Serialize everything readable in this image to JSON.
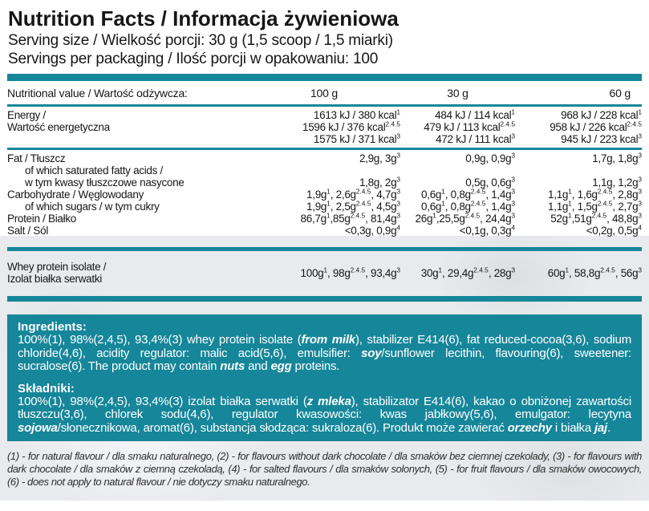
{
  "theme": {
    "teal": "#16869A",
    "text_color": "#161616",
    "ingredients_text_color": "#FFFFFF",
    "watermark_gray": "#E9EAED"
  },
  "header": {
    "title": "Nutrition Facts / Informacja żywieniowa",
    "serving_size": "Serving size / Wielkość porcji: 30 g (1,5 scoop / 1,5 miarki)",
    "servings_per_packaging": "Servings per packaging / Ilość porcji w opakowaniu: 100"
  },
  "table": {
    "header": {
      "label": "Nutritional value / Wartość odżywcza:",
      "col_100": "100 g",
      "col_30": "30 g",
      "col_60": "60 g"
    },
    "rows": [
      {
        "id": "energy",
        "label": "Energy /\nWartość energetyczna",
        "v100": "1613 kJ / 380 kcal^{1}\n1596 kJ / 376 kcal^{2.4.5}\n1575 kJ / 371 kcal^{3}",
        "v30": "484 kJ / 114 kcal^{1}\n479 kJ / 113 kcal^{2.4.5}\n472 kJ / 111 kcal^{3}",
        "v60": "968 kJ / 228 kcal^{1}\n958 kJ / 226 kcal^{2.4.5}\n945 kJ / 223 kcal^{3}"
      },
      {
        "id": "fat",
        "label": "Fat / Tłuszcz",
        "v100": "2,9g, 3g^{3}",
        "v30": "0,9g, 0,9g^{3}",
        "v60": "1,7g, 1,8g^{3}"
      },
      {
        "id": "saturated-fat",
        "label": "of which saturated fatty acids /\nw tym kwasy tłuszczowe nasycone",
        "v100": "1,8g, 2g^{3}",
        "v30": "0,5g, 0,6g^{3}",
        "v60": "1,1g, 1,2g^{3}"
      },
      {
        "id": "carbohydrate",
        "label": "Carbohydrate / Węglowodany",
        "v100": "1,9g^{1}, 2,6g^{2.4.5}, 4,7g^{3}",
        "v30": "0,6g^{1}, 0,8g^{2.4.5}, 1,4g^{3}",
        "v60": "1,1g^{1}, 1,6g^{2.4.5}, 2,8g^{3}"
      },
      {
        "id": "sugars",
        "label": "of which sugars / w tym cukry",
        "v100": "1,9g^{1}, 2,5g^{2.4.5}, 4,5g^{3}",
        "v30": "0,6g^{1}, 0,8g^{2.4.5}, 1,4g^{3}",
        "v60": "1,1g^{1}, 1,5g^{2.4.5}, 2,7g^{3}"
      },
      {
        "id": "protein",
        "label": "Protein / Białko",
        "v100": "86,7g^{1},85g^{2.4.5}, 81,4g^{3}",
        "v30": "26g^{1},25,5g^{2.4.5}, 24,4g^{3}",
        "v60": "52g^{1},51g^{2.4.5}, 48,8g^{3}"
      },
      {
        "id": "salt",
        "label": "Salt / Sól",
        "v100": "<0,3g, 0,9g^{4}",
        "v30": "<0,1g, 0,3g^{4}",
        "v60": "<0,2g, 0,5g^{4}"
      },
      {
        "id": "whey-protein-isolate",
        "label": "Whey protein isolate /\nIzolat białka serwatki",
        "v100": "100g^{1}, 98g^{2.4.5}, 93,4g^{3}",
        "v30": "30g^{1}, 29,4g^{2.4.5}, 28g^{3}",
        "v60": "60g^{1}, 58,8g^{2.4.5}, 56g^{3}"
      }
    ]
  },
  "ingredients_en": {
    "heading": "Ingredients:",
    "body": "100%(1), 98%(2,4,5), 93,4%(3) whey protein isolate (*from milk*), stabilizer E414(6), fat reduced-cocoa(3,6), sodium chloride(4,6), acidity regulator: malic acid(5,6), emulsifier: *soy*/sunflower lecithin, flavouring(6), sweetener: sucralose(6). The product may contain *nuts* and *egg* proteins."
  },
  "ingredients_pl": {
    "heading": "Składniki:",
    "body": "100%(1), 98%(2,4,5), 93,4%(3) izolat białka serwatki (*z mleka*), stabilizator E414(6), kakao o obniżonej zawartości tłuszczu(3,6), chlorek sodu(4,6), regulator kwasowości: kwas jabłkowy(5,6), emulgator: lecytyna *sojowa*/słonecznikowa, aromat(6), substancja słodząca: sukraloza(6). Produkt może zawierać *orzechy* i białka *jaj*."
  },
  "footnote": {
    "text": "(1) - for natural flavour / dla smaku naturalnego, (2) - for flavours without dark chocolate / dla smaków bez ciemnej czekolady, (3) - for flavours with dark chocolate / dla smaków z ciemną czekoladą, (4) - for salted flavours / dla smaków solonych, (5) - for fruit flavours / dla smaków owocowych, (6) - does not apply to natural flavour / nie dotyczy smaku naturalnego."
  }
}
